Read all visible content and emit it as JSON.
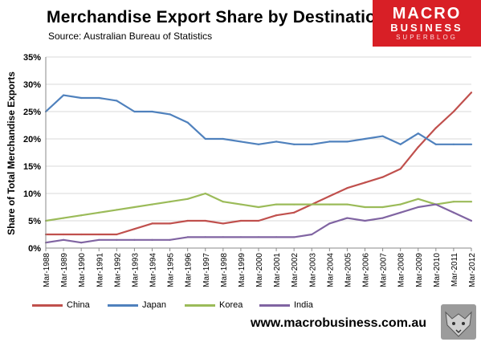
{
  "header": {
    "title": "Merchandise  Export Share by Destination",
    "subtitle": "Source:  Australian Bureau of Statistics"
  },
  "logo": {
    "line1": "MACRO",
    "line2": "BUSINESS",
    "line3": "SUPERBLOG"
  },
  "footer": {
    "url": "www.macrobusiness.com.au"
  },
  "colors": {
    "China": "#c0504d",
    "Japan": "#4f81bd",
    "Korea": "#9bbb59",
    "India": "#8064a2",
    "grid": "#d9d9d9"
  },
  "chart_data": {
    "type": "line",
    "title": "Merchandise  Export Share by Destination",
    "subtitle": "Source:  Australian Bureau of Statistics",
    "xlabel": "",
    "ylabel": "Share of Total Merchandise Exports",
    "ylim": [
      0,
      35
    ],
    "yticks": [
      "0%",
      "5%",
      "10%",
      "15%",
      "20%",
      "25%",
      "30%",
      "35%"
    ],
    "grid": "horizontal",
    "legend": "bottom",
    "categories": [
      "Mar-1988",
      "Mar-1989",
      "Mar-1990",
      "Mar-1991",
      "Mar-1992",
      "Mar-1993",
      "Mar-1994",
      "Mar-1995",
      "Mar-1996",
      "Mar-1997",
      "Mar-1998",
      "Mar-1999",
      "Mar-2000",
      "Mar-2001",
      "Mar-2002",
      "Mar-2003",
      "Mar-2004",
      "Mar-2005",
      "Mar-2006",
      "Mar-2007",
      "Mar-2008",
      "Mar-2009",
      "Mar-2010",
      "Mar-2011",
      "Mar-2012"
    ],
    "series": [
      {
        "name": "China",
        "values": [
          2.5,
          2.5,
          2.5,
          2.5,
          2.5,
          3.5,
          4.5,
          4.5,
          5.0,
          5.0,
          4.5,
          5.0,
          5.0,
          6.0,
          6.5,
          8.0,
          9.5,
          11.0,
          12.0,
          13.0,
          14.5,
          18.5,
          22.0,
          25.0,
          28.5
        ]
      },
      {
        "name": "Japan",
        "values": [
          25.0,
          28.0,
          27.5,
          27.5,
          27.0,
          25.0,
          25.0,
          24.5,
          23.0,
          20.0,
          20.0,
          19.5,
          19.0,
          19.5,
          19.0,
          19.0,
          19.5,
          19.5,
          20.0,
          20.5,
          19.0,
          21.0,
          19.0,
          19.0,
          19.0
        ]
      },
      {
        "name": "Korea",
        "values": [
          5.0,
          5.5,
          6.0,
          6.5,
          7.0,
          7.5,
          8.0,
          8.5,
          9.0,
          10.0,
          8.5,
          8.0,
          7.5,
          8.0,
          8.0,
          8.0,
          8.0,
          8.0,
          7.5,
          7.5,
          8.0,
          9.0,
          8.0,
          8.5,
          8.5
        ]
      },
      {
        "name": "India",
        "values": [
          1.0,
          1.5,
          1.0,
          1.5,
          1.5,
          1.5,
          1.5,
          1.5,
          2.0,
          2.0,
          2.0,
          2.0,
          2.0,
          2.0,
          2.0,
          2.5,
          4.5,
          5.5,
          5.0,
          5.5,
          6.5,
          7.5,
          8.0,
          6.5,
          5.0
        ]
      }
    ]
  }
}
